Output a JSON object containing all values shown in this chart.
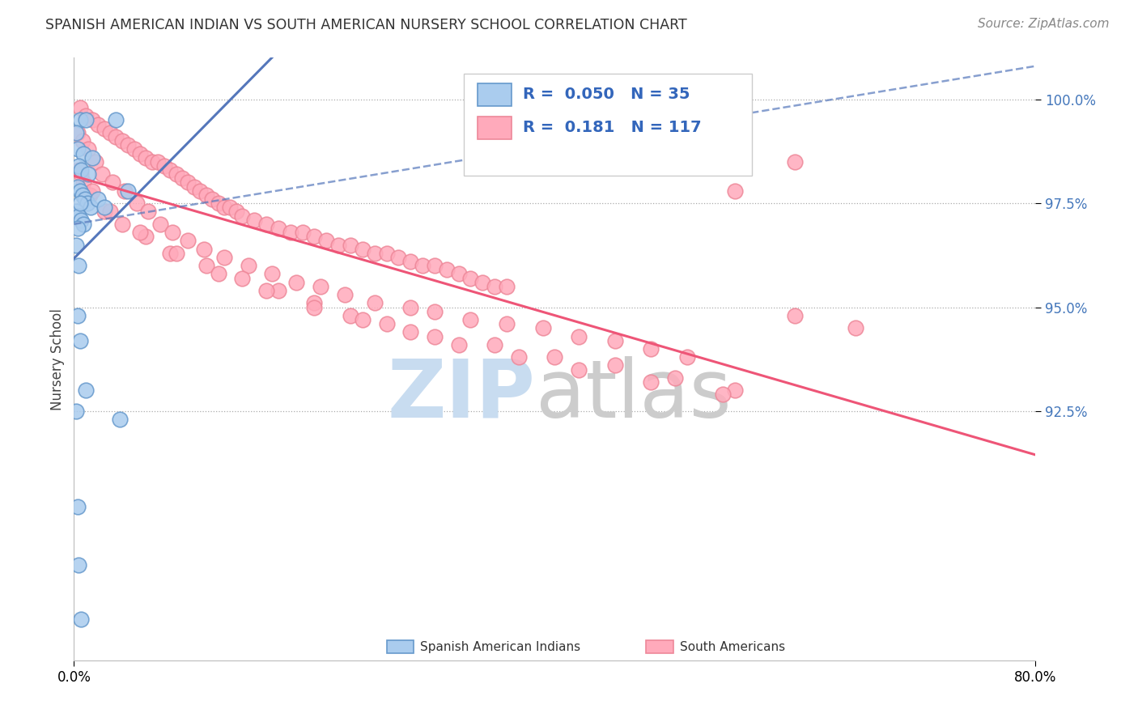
{
  "title": "SPANISH AMERICAN INDIAN VS SOUTH AMERICAN NURSERY SCHOOL CORRELATION CHART",
  "source": "Source: ZipAtlas.com",
  "ylabel": "Nursery School",
  "legend_blue_label": "Spanish American Indians",
  "legend_pink_label": "South Americans",
  "R_blue": 0.05,
  "N_blue": 35,
  "R_pink": 0.181,
  "N_pink": 117,
  "blue_face": "#AACCEE",
  "blue_edge": "#6699CC",
  "pink_face": "#FFAABB",
  "pink_edge": "#EE8899",
  "blue_line_color": "#5577BB",
  "pink_line_color": "#EE5577",
  "watermark_zip_color": "#CCDDEE",
  "watermark_atlas_color": "#CCCCCC",
  "x_min": 0,
  "x_max": 80,
  "y_min": 86.5,
  "y_max": 101.0,
  "yticks": [
    92.5,
    95.0,
    97.5,
    100.0
  ],
  "ytick_labels": [
    "92.5%",
    "95.0%",
    "97.5%",
    "100.0%"
  ],
  "blue_points_x": [
    0.5,
    1.0,
    3.5,
    0.2,
    0.3,
    0.8,
    1.5,
    0.4,
    0.6,
    1.2,
    0.3,
    0.5,
    0.7,
    0.9,
    1.1,
    1.4,
    0.2,
    0.4,
    0.6,
    0.8,
    0.3,
    0.5,
    2.0,
    4.5,
    0.2,
    0.4,
    2.5,
    0.3,
    0.5,
    1.0,
    0.2,
    3.8,
    0.3,
    0.4,
    0.6
  ],
  "blue_points_y": [
    99.5,
    99.5,
    99.5,
    99.2,
    98.8,
    98.7,
    98.6,
    98.4,
    98.3,
    98.2,
    97.9,
    97.8,
    97.7,
    97.6,
    97.5,
    97.4,
    97.3,
    97.2,
    97.1,
    97.0,
    96.9,
    97.5,
    97.6,
    97.8,
    96.5,
    96.0,
    97.4,
    94.8,
    94.2,
    93.0,
    92.5,
    92.3,
    90.2,
    88.8,
    87.5
  ],
  "pink_points_x": [
    0.5,
    1.0,
    1.5,
    2.0,
    2.5,
    3.0,
    3.5,
    4.0,
    4.5,
    5.0,
    5.5,
    6.0,
    6.5,
    7.0,
    7.5,
    8.0,
    8.5,
    9.0,
    9.5,
    10.0,
    10.5,
    11.0,
    11.5,
    12.0,
    12.5,
    13.0,
    13.5,
    14.0,
    15.0,
    16.0,
    17.0,
    18.0,
    19.0,
    20.0,
    21.0,
    22.0,
    23.0,
    24.0,
    25.0,
    26.0,
    27.0,
    28.0,
    29.0,
    30.0,
    31.0,
    32.0,
    33.0,
    34.0,
    35.0,
    36.0,
    0.3,
    0.7,
    1.2,
    1.8,
    2.3,
    3.2,
    4.2,
    5.2,
    6.2,
    7.2,
    8.2,
    9.5,
    10.8,
    12.5,
    14.5,
    16.5,
    18.5,
    20.5,
    22.5,
    25.0,
    28.0,
    30.0,
    33.0,
    36.0,
    39.0,
    42.0,
    45.0,
    48.0,
    51.0,
    55.0,
    0.4,
    0.8,
    1.3,
    2.5,
    4.0,
    6.0,
    8.0,
    11.0,
    14.0,
    17.0,
    20.0,
    23.0,
    26.0,
    30.0,
    35.0,
    40.0,
    45.0,
    50.0,
    55.0,
    60.0,
    0.6,
    1.5,
    3.0,
    5.5,
    8.5,
    12.0,
    16.0,
    20.0,
    24.0,
    28.0,
    32.0,
    37.0,
    42.0,
    48.0,
    54.0,
    60.0,
    65.0
  ],
  "pink_points_y": [
    99.8,
    99.6,
    99.5,
    99.4,
    99.3,
    99.2,
    99.1,
    99.0,
    98.9,
    98.8,
    98.7,
    98.6,
    98.5,
    98.5,
    98.4,
    98.3,
    98.2,
    98.1,
    98.0,
    97.9,
    97.8,
    97.7,
    97.6,
    97.5,
    97.4,
    97.4,
    97.3,
    97.2,
    97.1,
    97.0,
    96.9,
    96.8,
    96.8,
    96.7,
    96.6,
    96.5,
    96.5,
    96.4,
    96.3,
    96.3,
    96.2,
    96.1,
    96.0,
    96.0,
    95.9,
    95.8,
    95.7,
    95.6,
    95.5,
    95.5,
    99.2,
    99.0,
    98.8,
    98.5,
    98.2,
    98.0,
    97.8,
    97.5,
    97.3,
    97.0,
    96.8,
    96.6,
    96.4,
    96.2,
    96.0,
    95.8,
    95.6,
    95.5,
    95.3,
    95.1,
    95.0,
    94.9,
    94.7,
    94.6,
    94.5,
    94.3,
    94.2,
    94.0,
    93.8,
    97.8,
    98.3,
    98.0,
    97.7,
    97.3,
    97.0,
    96.7,
    96.3,
    96.0,
    95.7,
    95.4,
    95.1,
    94.8,
    94.6,
    94.3,
    94.1,
    93.8,
    93.6,
    93.3,
    93.0,
    98.5,
    98.2,
    97.8,
    97.3,
    96.8,
    96.3,
    95.8,
    95.4,
    95.0,
    94.7,
    94.4,
    94.1,
    93.8,
    93.5,
    93.2,
    92.9,
    94.8,
    94.5
  ]
}
